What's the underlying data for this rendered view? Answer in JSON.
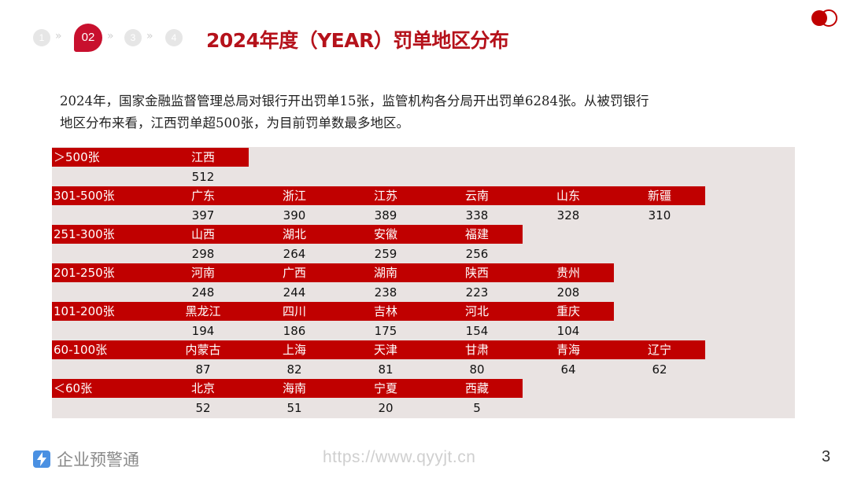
{
  "nav": {
    "steps": [
      "1",
      "02",
      "3",
      "4"
    ],
    "arrow": "»"
  },
  "title": "2024年度（YEAR）罚单地区分布",
  "intro": {
    "line1": "2024年，国家金融监督管理总局对银行开出罚单15张，监管机构各分局开出罚单6284张。从被罚银行",
    "line2": "地区分布来看，江西罚单超500张，为目前罚单数最多地区。"
  },
  "table": [
    {
      "range": "＞500张",
      "items": [
        {
          "name": "江西",
          "value": "512"
        }
      ]
    },
    {
      "range": "301-500张",
      "items": [
        {
          "name": "广东",
          "value": "397"
        },
        {
          "name": "浙江",
          "value": "390"
        },
        {
          "name": "江苏",
          "value": "389"
        },
        {
          "name": "云南",
          "value": "338"
        },
        {
          "name": "山东",
          "value": "328"
        },
        {
          "name": "新疆",
          "value": "310"
        }
      ]
    },
    {
      "range": "251-300张",
      "items": [
        {
          "name": "山西",
          "value": "298"
        },
        {
          "name": "湖北",
          "value": "264"
        },
        {
          "name": "安徽",
          "value": "259"
        },
        {
          "name": "福建",
          "value": "256"
        }
      ]
    },
    {
      "range": "201-250张",
      "items": [
        {
          "name": "河南",
          "value": "248"
        },
        {
          "name": "广西",
          "value": "244"
        },
        {
          "name": "湖南",
          "value": "238"
        },
        {
          "name": "陕西",
          "value": "223"
        },
        {
          "name": "贵州",
          "value": "208"
        }
      ]
    },
    {
      "range": "101-200张",
      "items": [
        {
          "name": "黑龙江",
          "value": "194"
        },
        {
          "name": "四川",
          "value": "186"
        },
        {
          "name": "吉林",
          "value": "175"
        },
        {
          "name": "河北",
          "value": "154"
        },
        {
          "name": "重庆",
          "value": "104"
        }
      ]
    },
    {
      "range": "60-100张",
      "items": [
        {
          "name": "内蒙古",
          "value": "87"
        },
        {
          "name": "上海",
          "value": "82"
        },
        {
          "name": "天津",
          "value": "81"
        },
        {
          "name": "甘肃",
          "value": "80"
        },
        {
          "name": "青海",
          "value": "64"
        },
        {
          "name": "辽宁",
          "value": "62"
        }
      ]
    },
    {
      "range": "＜60张",
      "items": [
        {
          "name": "北京",
          "value": "52"
        },
        {
          "name": "海南",
          "value": "51"
        },
        {
          "name": "宁夏",
          "value": "20"
        },
        {
          "name": "西藏",
          "value": "5"
        }
      ]
    }
  ],
  "footer": {
    "brand": "企业预警通",
    "url": "https://www.qyyjt.cn",
    "page": "3",
    "brand_icon": "lightning-icon"
  },
  "colors": {
    "accent": "#c00000",
    "title": "#b5121b",
    "table_bg": "#e9e3e2"
  }
}
